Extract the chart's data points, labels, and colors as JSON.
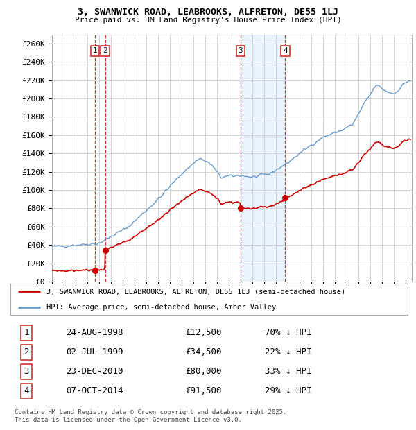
{
  "title": "3, SWANWICK ROAD, LEABROOKS, ALFRETON, DE55 1LJ",
  "subtitle": "Price paid vs. HM Land Registry's House Price Index (HPI)",
  "ylim": [
    0,
    270000
  ],
  "yticks": [
    0,
    20000,
    40000,
    60000,
    80000,
    100000,
    120000,
    140000,
    160000,
    180000,
    200000,
    220000,
    240000,
    260000
  ],
  "ytick_labels": [
    "£0",
    "£20K",
    "£40K",
    "£60K",
    "£80K",
    "£100K",
    "£120K",
    "£140K",
    "£160K",
    "£180K",
    "£200K",
    "£220K",
    "£240K",
    "£260K"
  ],
  "xlim_start": 1995.0,
  "xlim_end": 2025.5,
  "transactions": [
    {
      "num": 1,
      "date": "24-AUG-1998",
      "year": 1998.645,
      "price": 12500,
      "pct": "70%",
      "dir": "↓"
    },
    {
      "num": 2,
      "date": "02-JUL-1999",
      "year": 1999.496,
      "price": 34500,
      "pct": "22%",
      "dir": "↓"
    },
    {
      "num": 3,
      "date": "23-DEC-2010",
      "year": 2010.978,
      "price": 80000,
      "pct": "33%",
      "dir": "↓"
    },
    {
      "num": 4,
      "date": "07-OCT-2014",
      "year": 2014.769,
      "price": 91500,
      "pct": "29%",
      "dir": "↓"
    }
  ],
  "legend_line1": "3, SWANWICK ROAD, LEABROOKS, ALFRETON, DE55 1LJ (semi-detached house)",
  "legend_line2": "HPI: Average price, semi-detached house, Amber Valley",
  "footer": "Contains HM Land Registry data © Crown copyright and database right 2025.\nThis data is licensed under the Open Government Licence v3.0.",
  "hpi_color": "#6699cc",
  "price_color": "#cc0000",
  "vline_color": "#cc3333",
  "shade_color": "#ddeeff",
  "bg_color": "#ffffff",
  "grid_color": "#cccccc",
  "fig_width": 6.0,
  "fig_height": 6.2,
  "dpi": 100
}
